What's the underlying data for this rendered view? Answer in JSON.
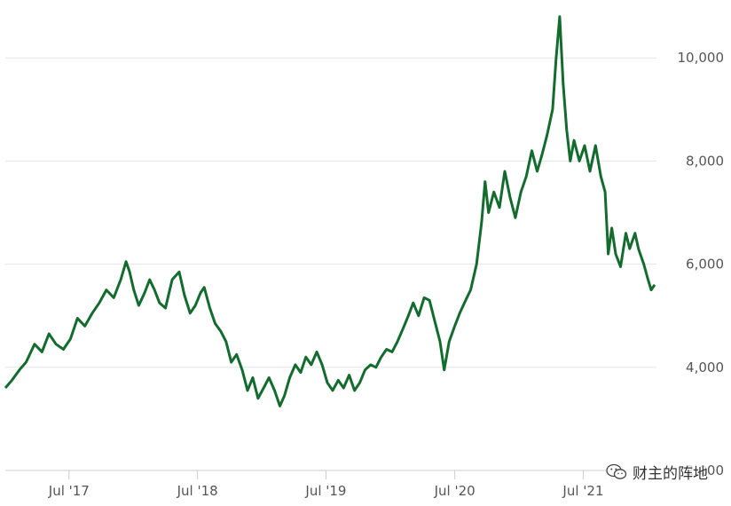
{
  "chart_data": {
    "type": "line",
    "title": "",
    "xlabel": "",
    "ylabel": "",
    "color": "#136b2e",
    "ylim": [
      2000,
      11000
    ],
    "x_ticks": [
      "Jul '17",
      "Jul '18",
      "Jul '19",
      "Jul '20",
      "Jul '21"
    ],
    "y_ticks": [
      "2,000",
      "4,000",
      "6,000",
      "8,000",
      "10,000"
    ],
    "series": [
      {
        "name": "",
        "values": [
          [
            "2017-01-01",
            3600
          ],
          [
            "2017-01-20",
            3750
          ],
          [
            "2017-02-10",
            3950
          ],
          [
            "2017-03-01",
            4100
          ],
          [
            "2017-03-25",
            4450
          ],
          [
            "2017-04-15",
            4300
          ],
          [
            "2017-05-05",
            4650
          ],
          [
            "2017-05-25",
            4450
          ],
          [
            "2017-06-15",
            4350
          ],
          [
            "2017-07-05",
            4550
          ],
          [
            "2017-07-25",
            4950
          ],
          [
            "2017-08-15",
            4800
          ],
          [
            "2017-09-05",
            5050
          ],
          [
            "2017-09-25",
            5250
          ],
          [
            "2017-10-15",
            5500
          ],
          [
            "2017-11-05",
            5350
          ],
          [
            "2017-11-25",
            5700
          ],
          [
            "2017-12-10",
            6050
          ],
          [
            "2017-12-20",
            5850
          ],
          [
            "2018-01-01",
            5500
          ],
          [
            "2018-01-15",
            5200
          ],
          [
            "2018-02-01",
            5450
          ],
          [
            "2018-02-15",
            5700
          ],
          [
            "2018-03-01",
            5500
          ],
          [
            "2018-03-15",
            5250
          ],
          [
            "2018-04-01",
            5150
          ],
          [
            "2018-04-20",
            5700
          ],
          [
            "2018-05-10",
            5850
          ],
          [
            "2018-05-25",
            5400
          ],
          [
            "2018-06-10",
            5050
          ],
          [
            "2018-06-25",
            5200
          ],
          [
            "2018-07-10",
            5450
          ],
          [
            "2018-07-20",
            5550
          ],
          [
            "2018-08-05",
            5150
          ],
          [
            "2018-08-20",
            4850
          ],
          [
            "2018-09-05",
            4700
          ],
          [
            "2018-09-20",
            4500
          ],
          [
            "2018-10-05",
            4100
          ],
          [
            "2018-10-20",
            4250
          ],
          [
            "2018-11-05",
            3950
          ],
          [
            "2018-11-20",
            3550
          ],
          [
            "2018-12-05",
            3800
          ],
          [
            "2018-12-20",
            3400
          ],
          [
            "2019-01-05",
            3600
          ],
          [
            "2019-01-20",
            3800
          ],
          [
            "2019-02-05",
            3550
          ],
          [
            "2019-02-20",
            3250
          ],
          [
            "2019-03-05",
            3450
          ],
          [
            "2019-03-20",
            3800
          ],
          [
            "2019-04-05",
            4050
          ],
          [
            "2019-04-20",
            3900
          ],
          [
            "2019-05-05",
            4200
          ],
          [
            "2019-05-20",
            4050
          ],
          [
            "2019-06-05",
            4300
          ],
          [
            "2019-06-20",
            4050
          ],
          [
            "2019-07-05",
            3700
          ],
          [
            "2019-07-20",
            3550
          ],
          [
            "2019-08-05",
            3750
          ],
          [
            "2019-08-20",
            3600
          ],
          [
            "2019-09-05",
            3850
          ],
          [
            "2019-09-20",
            3550
          ],
          [
            "2019-10-05",
            3700
          ],
          [
            "2019-10-20",
            3950
          ],
          [
            "2019-11-05",
            4050
          ],
          [
            "2019-11-20",
            4000
          ],
          [
            "2019-12-05",
            4200
          ],
          [
            "2019-12-20",
            4350
          ],
          [
            "2020-01-05",
            4300
          ],
          [
            "2020-01-20",
            4500
          ],
          [
            "2020-02-05",
            4750
          ],
          [
            "2020-02-20",
            5000
          ],
          [
            "2020-03-05",
            5250
          ],
          [
            "2020-03-20",
            5000
          ],
          [
            "2020-04-05",
            5350
          ],
          [
            "2020-04-20",
            5300
          ],
          [
            "2020-05-05",
            4900
          ],
          [
            "2020-05-20",
            4500
          ],
          [
            "2020-06-01",
            3950
          ],
          [
            "2020-06-15",
            4500
          ],
          [
            "2020-07-01",
            4800
          ],
          [
            "2020-07-15",
            5050
          ],
          [
            "2020-08-01",
            5300
          ],
          [
            "2020-08-15",
            5500
          ],
          [
            "2020-09-01",
            6000
          ],
          [
            "2020-09-15",
            6800
          ],
          [
            "2020-09-25",
            7600
          ],
          [
            "2020-10-05",
            7000
          ],
          [
            "2020-10-20",
            7400
          ],
          [
            "2020-11-05",
            7100
          ],
          [
            "2020-11-20",
            7800
          ],
          [
            "2020-12-05",
            7300
          ],
          [
            "2020-12-20",
            6900
          ],
          [
            "2021-01-05",
            7400
          ],
          [
            "2021-01-20",
            7700
          ],
          [
            "2021-02-05",
            8200
          ],
          [
            "2021-02-20",
            7800
          ],
          [
            "2021-03-05",
            8100
          ],
          [
            "2021-03-20",
            8500
          ],
          [
            "2021-04-05",
            9000
          ],
          [
            "2021-04-15",
            10000
          ],
          [
            "2021-04-25",
            10800
          ],
          [
            "2021-05-05",
            9500
          ],
          [
            "2021-05-15",
            8600
          ],
          [
            "2021-05-25",
            8000
          ],
          [
            "2021-06-05",
            8400
          ],
          [
            "2021-06-20",
            8000
          ],
          [
            "2021-07-05",
            8300
          ],
          [
            "2021-07-20",
            7800
          ],
          [
            "2021-08-05",
            8300
          ],
          [
            "2021-08-20",
            7700
          ],
          [
            "2021-09-01",
            7400
          ],
          [
            "2021-09-10",
            6200
          ],
          [
            "2021-09-20",
            6700
          ],
          [
            "2021-10-01",
            6200
          ],
          [
            "2021-10-15",
            5950
          ],
          [
            "2021-10-30",
            6600
          ],
          [
            "2021-11-10",
            6300
          ],
          [
            "2021-11-25",
            6600
          ],
          [
            "2021-12-05",
            6300
          ],
          [
            "2021-12-20",
            6000
          ],
          [
            "2022-01-01",
            5700
          ],
          [
            "2022-01-10",
            5500
          ],
          [
            "2022-01-20",
            5600
          ]
        ]
      }
    ]
  },
  "watermark": {
    "text": "财主的阵地"
  }
}
